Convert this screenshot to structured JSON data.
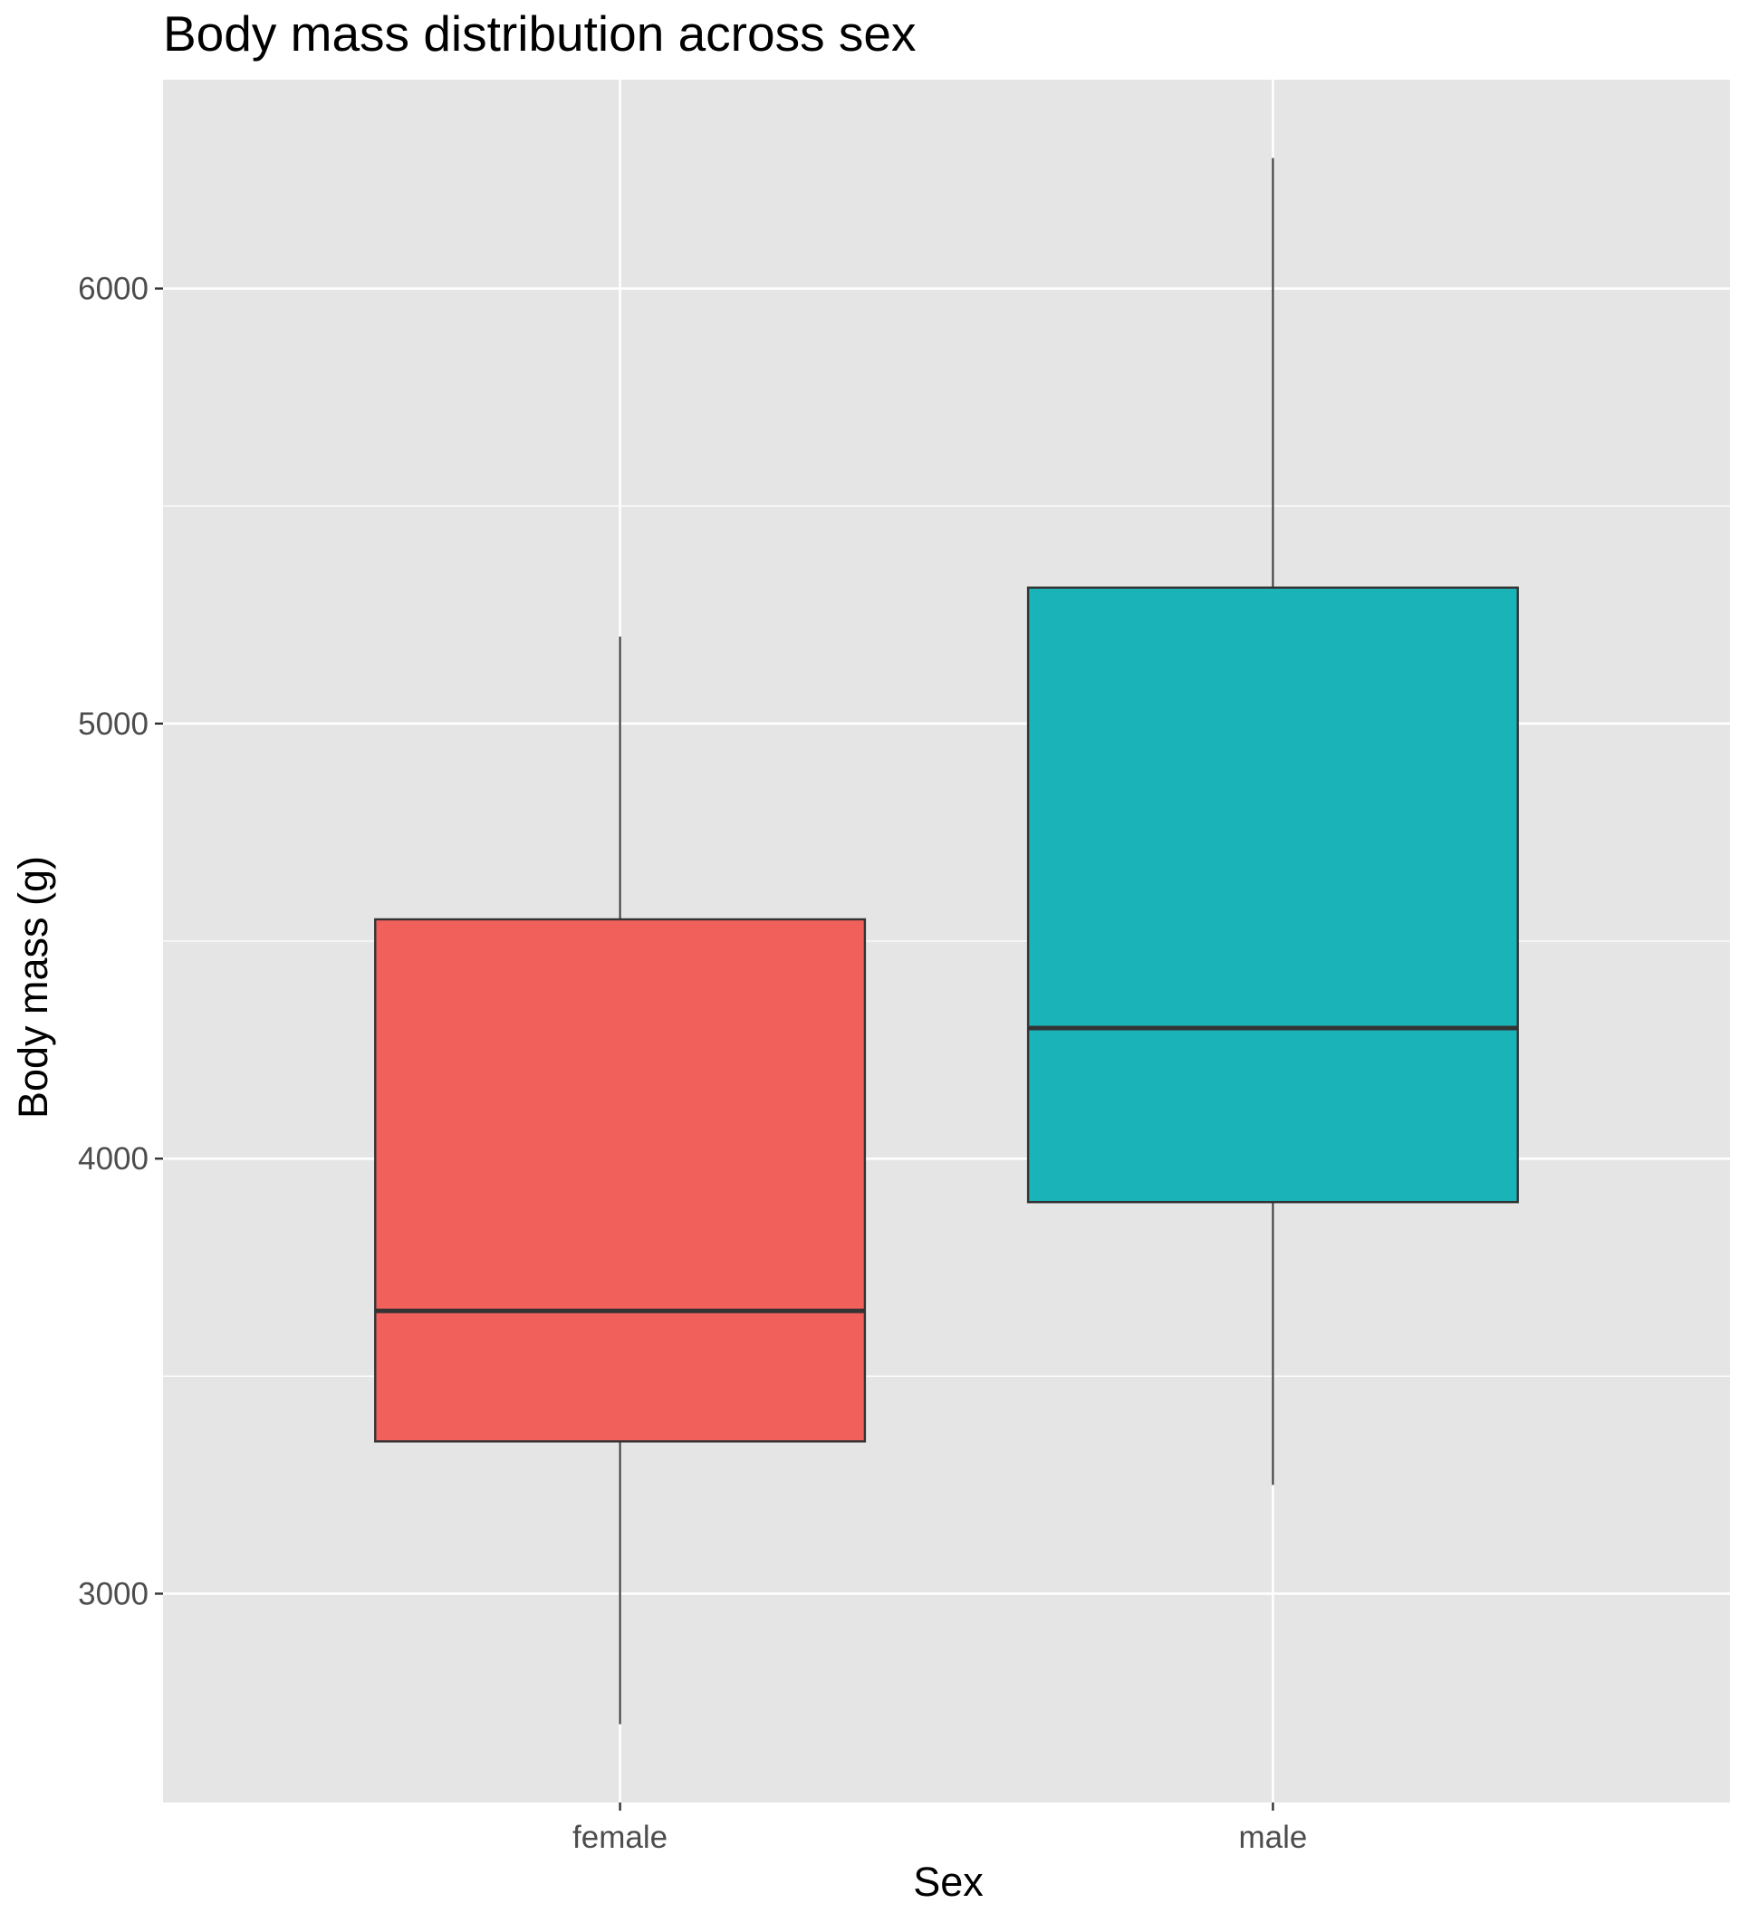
{
  "colors": {
    "panel_background": "#e5e5e5",
    "grid": "#ffffff",
    "box_outline": "#333333",
    "female": "#f2605c",
    "male": "#1ab3b8"
  },
  "chart_data": {
    "type": "box",
    "title": "Body mass distribution across sex",
    "xlabel": "Sex",
    "ylabel": "Body mass (g)",
    "categories": [
      "female",
      "male"
    ],
    "ylim": [
      2520,
      6480
    ],
    "yticks": [
      3000,
      4000,
      5000,
      6000
    ],
    "ytick_labels": [
      "3000",
      "4000",
      "5000",
      "6000"
    ],
    "grid": true,
    "legend": "none",
    "boxes": [
      {
        "category": "female",
        "whisker_low": 2700,
        "q1": 3350,
        "median": 3650,
        "q3": 4550,
        "whisker_high": 5200,
        "color": "#f2605c"
      },
      {
        "category": "male",
        "whisker_low": 3250,
        "q1": 3900,
        "median": 4300,
        "q3": 5312.5,
        "whisker_high": 6300,
        "color": "#1ab3b8"
      }
    ]
  }
}
